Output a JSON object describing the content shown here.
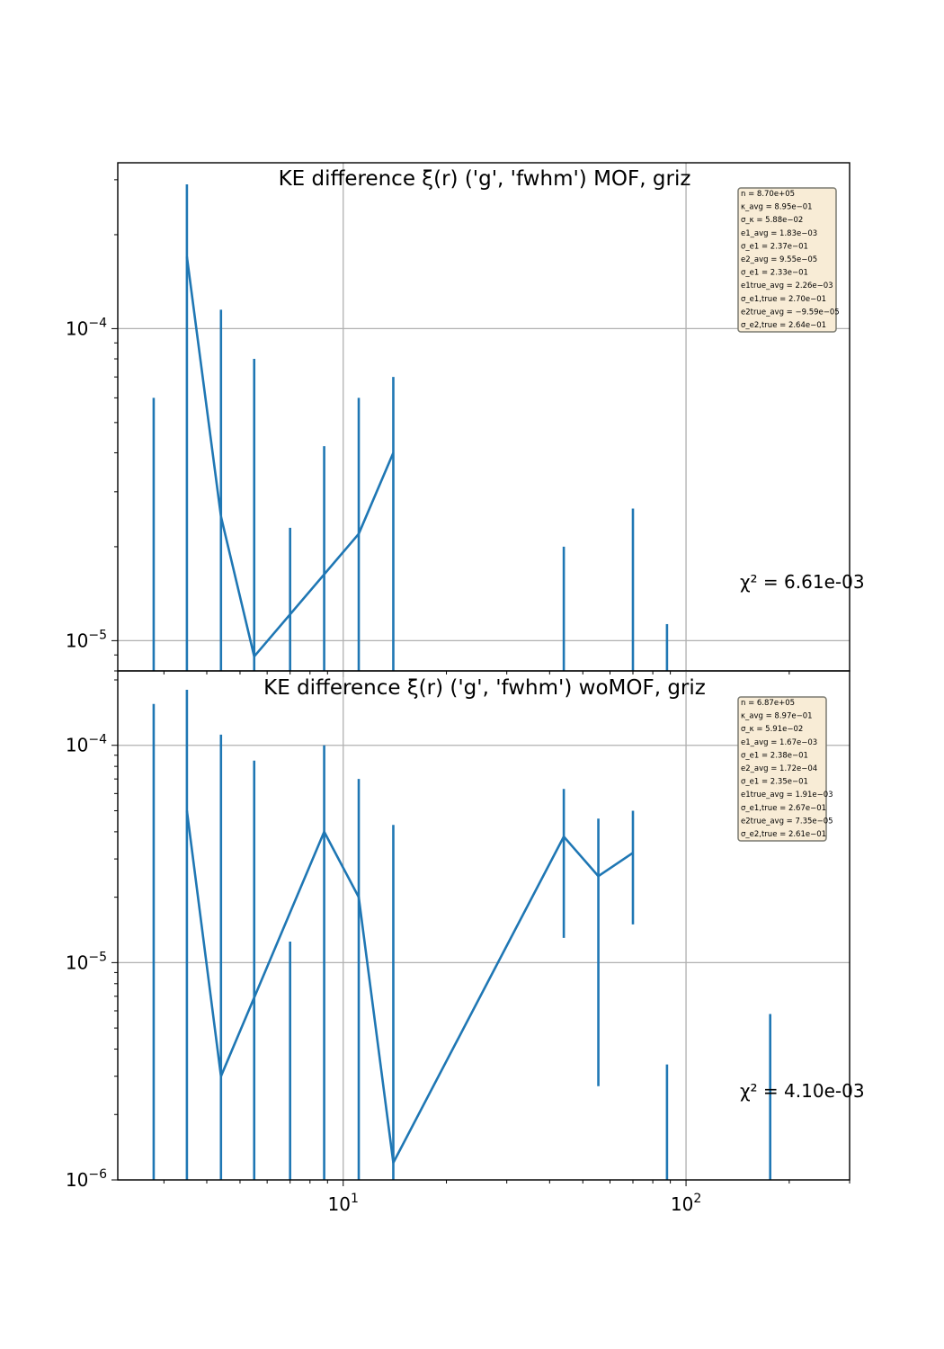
{
  "chart_data": [
    {
      "type": "line",
      "title": "KE difference ξ(r) ('g', 'fwhm') MOF,  griz",
      "xscale": "log",
      "yscale": "log",
      "xlim": [
        2.2,
        300
      ],
      "ylim": [
        8e-06,
        0.00034
      ],
      "grid": true,
      "x_tick_labels": [
        "10",
        "10"
      ],
      "x_tick_exponents": [
        "1",
        "2"
      ],
      "y_tick_labels": [
        "10",
        "10"
      ],
      "y_tick_exponents": [
        "−4",
        "−5"
      ],
      "line": {
        "x": [
          3.5,
          4.4,
          5.5,
          11.1,
          14.0
        ],
        "y": [
          0.00017,
          2.5e-05,
          8.9e-06,
          2.2e-05,
          4e-05
        ]
      },
      "errorbars": [
        {
          "x": 2.8,
          "lo": 1e-06,
          "hi": 6e-05
        },
        {
          "x": 3.5,
          "lo": 1e-06,
          "hi": 0.00029
        },
        {
          "x": 4.4,
          "lo": 1e-06,
          "hi": 0.000115
        },
        {
          "x": 5.5,
          "lo": 1e-06,
          "hi": 8e-05
        },
        {
          "x": 7.0,
          "lo": 1e-06,
          "hi": 2.3e-05
        },
        {
          "x": 8.8,
          "lo": 1e-06,
          "hi": 4.2e-05
        },
        {
          "x": 11.1,
          "lo": 1e-06,
          "hi": 6e-05
        },
        {
          "x": 14.0,
          "lo": 1e-06,
          "hi": 7e-05
        },
        {
          "x": 44.0,
          "lo": 1e-06,
          "hi": 2e-05
        },
        {
          "x": 70.0,
          "lo": 1e-06,
          "hi": 2.65e-05
        },
        {
          "x": 88.0,
          "lo": 1e-06,
          "hi": 1.13e-05
        }
      ],
      "chi2_label": "χ² = 6.61e-03",
      "stats": [
        "n = 8.70e+05",
        "κ_avg = 8.95e−01",
        "σ_κ = 5.88e−02",
        "e1_avg = 1.83e−03",
        "σ_e1 = 2.37e−01",
        "e2_avg = 9.55e−05",
        "σ_e1 = 2.33e−01",
        "e1true_avg = 2.26e−03",
        "σ_e1,true = 2.70e−01",
        "e2true_avg = −9.59e−05",
        "σ_e2,true = 2.64e−01"
      ]
    },
    {
      "type": "line",
      "title": "KE difference ξ(r) ('g', 'fwhm') woMOF,  griz",
      "xscale": "log",
      "yscale": "log",
      "xlim": [
        2.2,
        300
      ],
      "ylim": [
        1e-06,
        0.00022
      ],
      "grid": true,
      "x_tick_labels": [
        "10",
        "10"
      ],
      "x_tick_exponents": [
        "1",
        "2"
      ],
      "y_tick_labels": [
        "10",
        "10",
        "10"
      ],
      "y_tick_exponents": [
        "−4",
        "−5",
        "−6"
      ],
      "line": {
        "x": [
          3.5,
          4.4,
          8.8,
          11.1,
          14.0,
          44.0,
          55.5,
          70.0
        ],
        "y": [
          5e-05,
          3e-06,
          4e-05,
          2e-05,
          1.2e-06,
          3.8e-05,
          2.5e-05,
          3.2e-05
        ]
      },
      "errorbars": [
        {
          "x": 2.8,
          "lo": 1e-06,
          "hi": 0.000155
        },
        {
          "x": 3.5,
          "lo": 1e-06,
          "hi": 0.00018
        },
        {
          "x": 4.4,
          "lo": 1e-06,
          "hi": 0.000112
        },
        {
          "x": 5.5,
          "lo": 1e-06,
          "hi": 8.5e-05
        },
        {
          "x": 7.0,
          "lo": 1e-06,
          "hi": 1.25e-05
        },
        {
          "x": 8.8,
          "lo": 1e-06,
          "hi": 0.0001
        },
        {
          "x": 11.1,
          "lo": 1e-06,
          "hi": 7e-05
        },
        {
          "x": 14.0,
          "lo": 1e-06,
          "hi": 4.3e-05
        },
        {
          "x": 44.0,
          "lo": 1.3e-05,
          "hi": 6.3e-05
        },
        {
          "x": 55.5,
          "lo": 2.7e-06,
          "hi": 4.6e-05
        },
        {
          "x": 70.0,
          "lo": 1.5e-05,
          "hi": 5e-05
        },
        {
          "x": 88.0,
          "lo": 1e-06,
          "hi": 3.4e-06
        },
        {
          "x": 176.0,
          "lo": 1e-06,
          "hi": 5.8e-06
        }
      ],
      "chi2_label": "χ² = 4.10e-03",
      "stats": [
        "n = 6.87e+05",
        "κ_avg = 8.97e−01",
        "σ_κ = 5.91e−02",
        "e1_avg = 1.67e−03",
        "σ_e1 = 2.38e−01",
        "e2_avg = 1.72e−04",
        "σ_e1 = 2.35e−01",
        "e1true_avg = 1.91e−03",
        "σ_e1,true = 2.67e−01",
        "e2true_avg = 7.35e−05",
        "σ_e2,true = 2.61e−01"
      ]
    }
  ],
  "colors": {
    "series": "#1f77b4",
    "grid": "#b0b0b0",
    "stats_box_fill": "#f8ecd6",
    "stats_box_edge": "#7a7a70"
  }
}
